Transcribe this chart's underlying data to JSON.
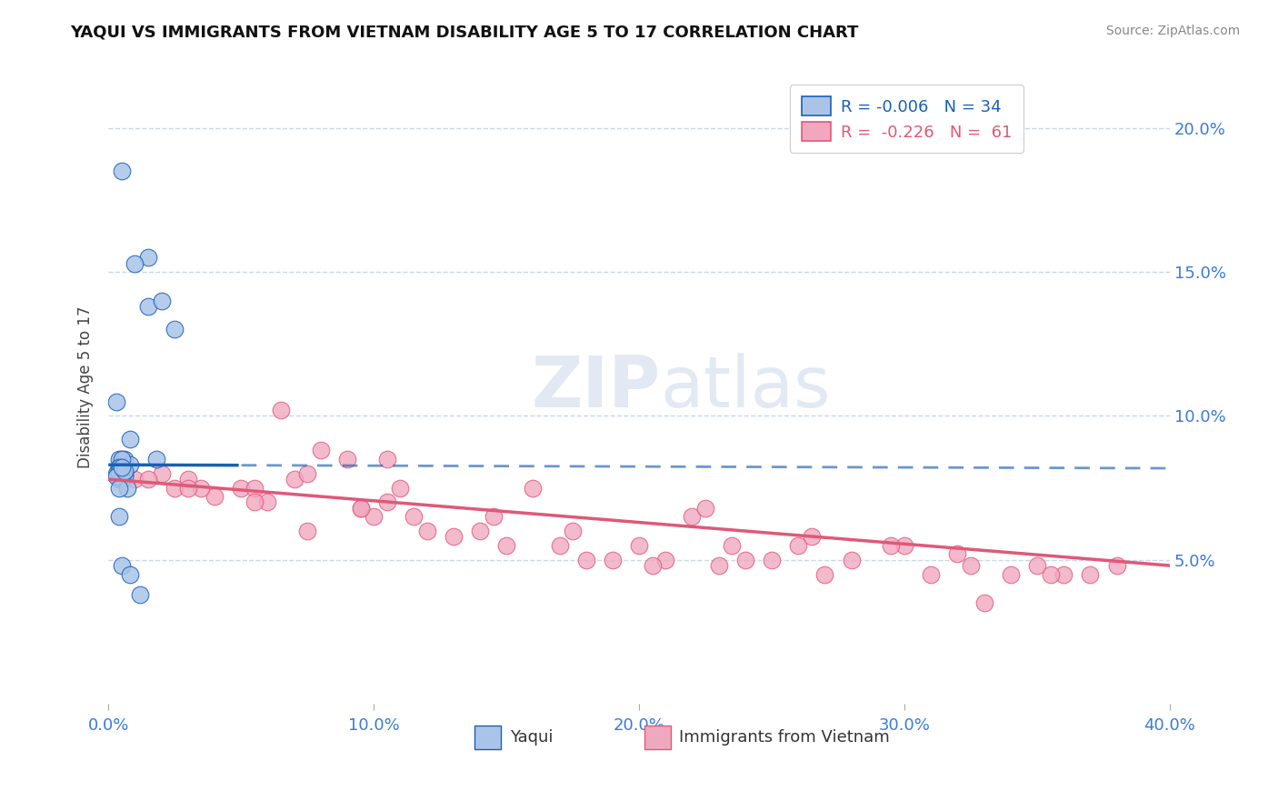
{
  "title": "YAQUI VS IMMIGRANTS FROM VIETNAM DISABILITY AGE 5 TO 17 CORRELATION CHART",
  "source": "Source: ZipAtlas.com",
  "ylabel": "Disability Age 5 to 17",
  "legend1_label": "R = -0.006   N = 34",
  "legend2_label": "R =  -0.226   N =  61",
  "legend1_color": "#aac4e8",
  "legend2_color": "#f0a8c0",
  "blue_line_color": "#1a5fb4",
  "pink_line_color": "#e05878",
  "blue_scatter_edge": "#1a5fb4",
  "pink_scatter_edge": "#e05878",
  "yaqui_x": [
    0.5,
    1.5,
    2.5,
    1.5,
    1.0,
    2.0,
    0.3,
    0.8,
    1.8,
    0.4,
    0.4,
    0.6,
    0.4,
    0.5,
    0.4,
    0.6,
    0.8,
    0.5,
    0.4,
    0.3,
    0.4,
    0.5,
    0.6,
    0.4,
    0.5,
    0.3,
    0.6,
    0.7,
    0.4,
    0.5,
    0.8,
    1.2,
    0.5,
    0.4
  ],
  "yaqui_y": [
    18.5,
    13.8,
    13.0,
    15.5,
    15.3,
    14.0,
    10.5,
    9.2,
    8.5,
    8.5,
    8.2,
    8.0,
    7.8,
    8.3,
    8.1,
    8.5,
    8.3,
    8.5,
    8.2,
    8.0,
    8.1,
    8.0,
    7.9,
    8.0,
    7.8,
    7.9,
    8.1,
    7.5,
    6.5,
    4.8,
    4.5,
    3.8,
    8.2,
    7.5
  ],
  "vietnam_x": [
    1.0,
    2.0,
    2.5,
    3.0,
    4.0,
    5.0,
    5.5,
    6.0,
    7.0,
    7.5,
    8.0,
    9.0,
    9.5,
    10.0,
    10.5,
    11.5,
    12.0,
    13.0,
    14.0,
    15.0,
    16.0,
    17.0,
    18.0,
    19.0,
    20.0,
    21.0,
    22.0,
    23.0,
    24.0,
    25.0,
    26.0,
    27.0,
    28.0,
    30.0,
    31.0,
    32.0,
    33.0,
    34.0,
    35.0,
    36.0,
    37.0,
    38.0,
    0.5,
    1.5,
    3.5,
    5.5,
    7.5,
    9.5,
    11.0,
    14.5,
    17.5,
    20.5,
    23.5,
    26.5,
    29.5,
    32.5,
    35.5,
    3.0,
    6.5,
    10.5,
    22.5
  ],
  "vietnam_y": [
    7.8,
    8.0,
    7.5,
    7.8,
    7.2,
    7.5,
    7.5,
    7.0,
    7.8,
    6.0,
    8.8,
    8.5,
    6.8,
    6.5,
    7.0,
    6.5,
    6.0,
    5.8,
    6.0,
    5.5,
    7.5,
    5.5,
    5.0,
    5.0,
    5.5,
    5.0,
    6.5,
    4.8,
    5.0,
    5.0,
    5.5,
    4.5,
    5.0,
    5.5,
    4.5,
    5.2,
    3.5,
    4.5,
    4.8,
    4.5,
    4.5,
    4.8,
    8.5,
    7.8,
    7.5,
    7.0,
    8.0,
    6.8,
    7.5,
    6.5,
    6.0,
    4.8,
    5.5,
    5.8,
    5.5,
    4.8,
    4.5,
    7.5,
    10.2,
    8.5,
    6.8
  ],
  "xlim": [
    0,
    40
  ],
  "ylim": [
    0,
    22
  ],
  "ytick_positions": [
    5,
    10,
    15,
    20
  ],
  "xtick_positions": [
    0,
    10,
    20,
    30,
    40
  ],
  "background_color": "#ffffff",
  "grid_color": "#c8d8e8",
  "title_color": "#111111",
  "tick_label_color": "#3a7bd5",
  "yaqui_solid_xmax": 5.0,
  "blue_line_y_intercept": 8.3,
  "blue_line_slope": -0.003,
  "pink_line_y_intercept": 7.8,
  "pink_line_slope": -0.075
}
